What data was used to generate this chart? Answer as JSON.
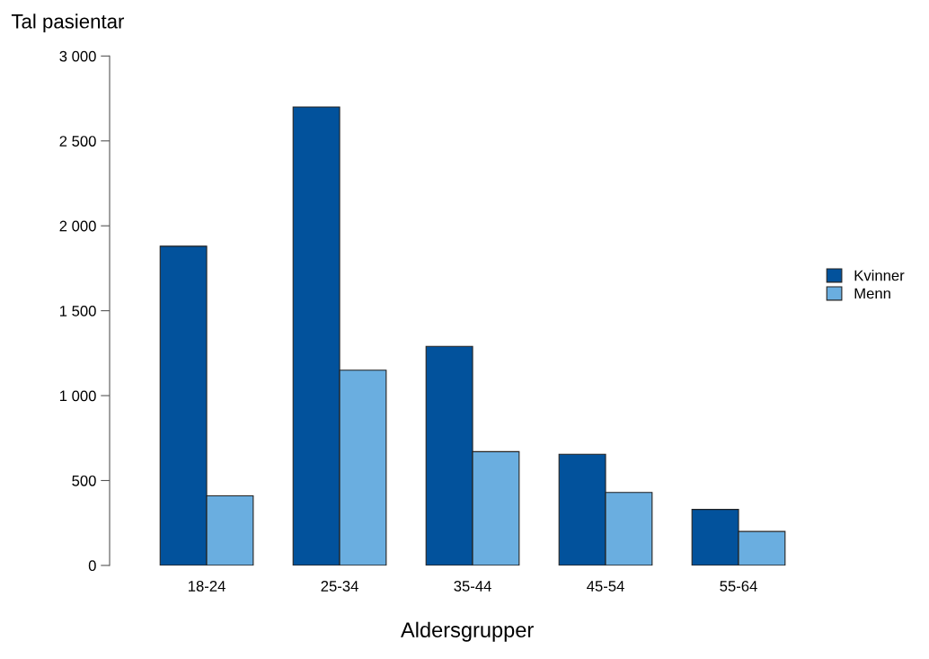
{
  "chart_data": {
    "type": "bar",
    "xlabel": "Aldersgrupper",
    "ylabel": "Tal pasientar",
    "categories": [
      "18-24",
      "25-34",
      "35-44",
      "45-54",
      "55-64"
    ],
    "series": [
      {
        "name": "Kvinner",
        "color": "#02529c",
        "values": [
          1880,
          2700,
          1290,
          655,
          330
        ]
      },
      {
        "name": "Menn",
        "color": "#6aaee0",
        "values": [
          410,
          1150,
          670,
          430,
          200
        ]
      }
    ],
    "ylim": [
      0,
      3000
    ],
    "yticks": [
      0,
      500,
      {
        "value": 1000,
        "label": "1 000"
      },
      {
        "value": 1500,
        "label": "1 500"
      },
      {
        "value": 2000,
        "label": "2 000"
      },
      {
        "value": 2500,
        "label": "2 500"
      },
      {
        "value": 3000,
        "label": "3 000"
      }
    ],
    "legend": "right",
    "grid": false
  }
}
